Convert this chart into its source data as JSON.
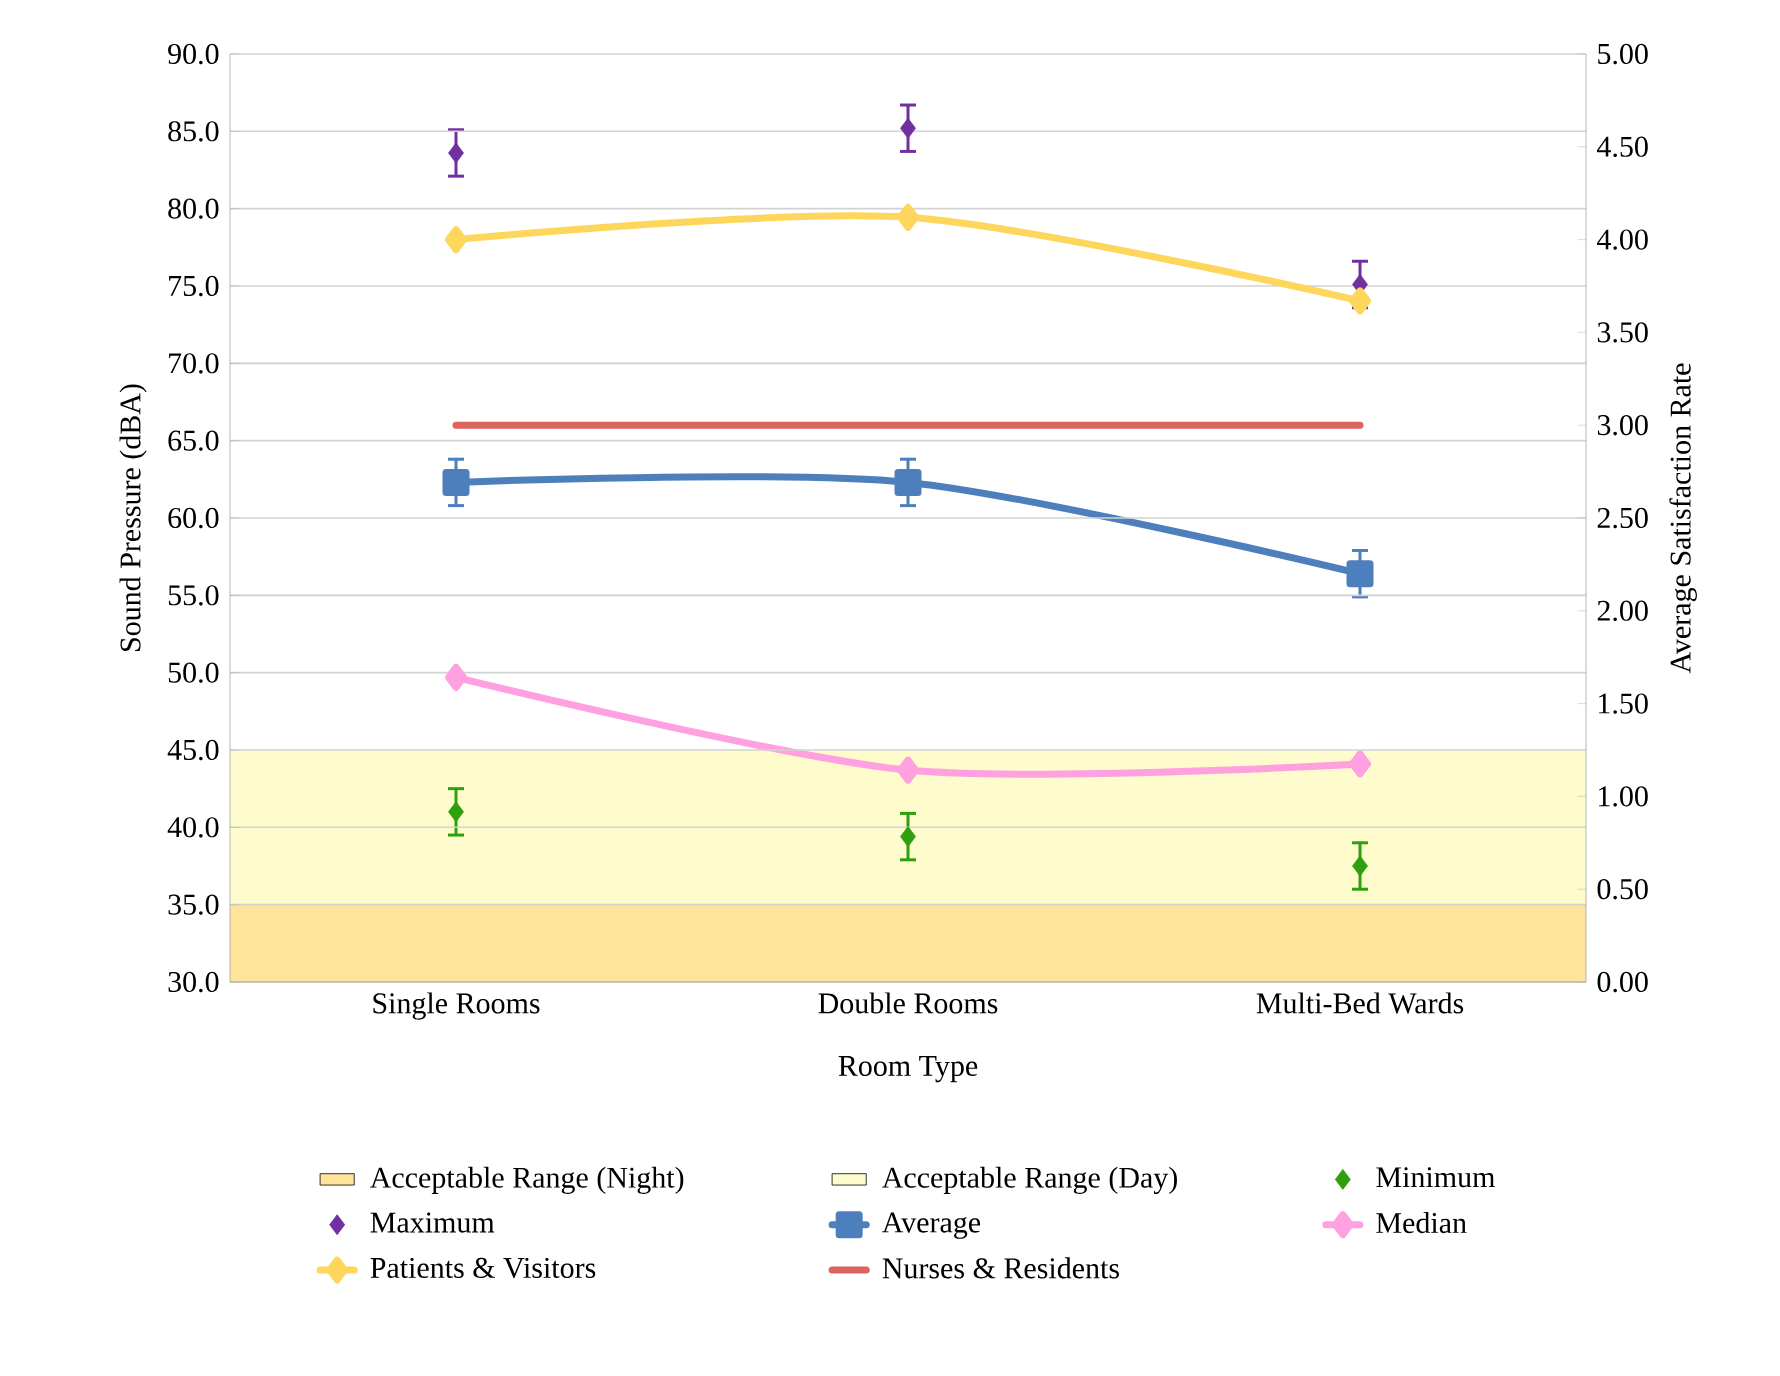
{
  "chart_data": {
    "type": "line",
    "xlabel": "Room Type",
    "ylabel": "Sound Pressure (dBA)",
    "y2label": "Average Satisfaction Rate",
    "categories": [
      "Single Rooms",
      "Double Rooms",
      "Multi-Bed Wards"
    ],
    "ylim": [
      30,
      90
    ],
    "yticks": [
      {
        "value": 30,
        "label": "30.0"
      },
      {
        "value": 35,
        "label": "35.0"
      },
      {
        "value": 40,
        "label": "40.0"
      },
      {
        "value": 45,
        "label": "45.0"
      },
      {
        "value": 50,
        "label": "50.0"
      },
      {
        "value": 55,
        "label": "55.0"
      },
      {
        "value": 60,
        "label": "60.0"
      },
      {
        "value": 65,
        "label": "65.0"
      },
      {
        "value": 70,
        "label": "70.0"
      },
      {
        "value": 75,
        "label": "75.0"
      },
      {
        "value": 80,
        "label": "80.0"
      },
      {
        "value": 85,
        "label": "85.0"
      },
      {
        "value": 90,
        "label": "90.0"
      }
    ],
    "y2lim": [
      0,
      5
    ],
    "y2ticks": [
      {
        "value": 0,
        "label": "0.00"
      },
      {
        "value": 0.5,
        "label": "0.50"
      },
      {
        "value": 1,
        "label": "1.00"
      },
      {
        "value": 1.5,
        "label": "1.50"
      },
      {
        "value": 2,
        "label": "2.00"
      },
      {
        "value": 2.5,
        "label": "2.50"
      },
      {
        "value": 3,
        "label": "3.00"
      },
      {
        "value": 3.5,
        "label": "3.50"
      },
      {
        "value": 4,
        "label": "4.00"
      },
      {
        "value": 4.5,
        "label": "4.50"
      },
      {
        "value": 5,
        "label": "5.00"
      }
    ],
    "grid": "y",
    "legend": "bottom",
    "bands": [
      {
        "axis": "y",
        "from": 30,
        "to": 35,
        "label": "Acceptable Range (Night)",
        "color": "#fee49a"
      },
      {
        "axis": "y",
        "from": 35,
        "to": 45,
        "label": "Acceptable Range (Day)",
        "color": "#fefccc"
      }
    ],
    "series": [
      {
        "name": "Minimum",
        "type": "scatter",
        "marker": "diamond",
        "color": "#2ea00e",
        "values": [
          41.0,
          39.4,
          37.5
        ],
        "errors": [
          1.5,
          1.5,
          1.5
        ]
      },
      {
        "name": "Maximum",
        "type": "scatter",
        "marker": "diamond",
        "color": "#7030a0",
        "values": [
          83.6,
          85.2,
          75.1
        ],
        "errors": [
          1.5,
          1.5,
          1.5
        ]
      },
      {
        "name": "Average",
        "marker": "square",
        "color": "#4e7fbd",
        "values": [
          62.3,
          62.3,
          56.4
        ],
        "errors": [
          1.5,
          1.5,
          1.5
        ]
      },
      {
        "name": "Median",
        "marker": "diamond",
        "color": "#ffa0e0",
        "values": [
          49.7,
          43.7,
          44.1
        ]
      },
      {
        "name": "Patients & Visitors",
        "marker": "diamond",
        "color": "#ffd65c",
        "axis": "y2",
        "values": [
          4.0,
          4.12,
          3.67
        ]
      },
      {
        "name": "Nurses & Residents",
        "marker": "none",
        "color": "#dc6460",
        "axis": "y2",
        "values": [
          3.0,
          3.0,
          3.0
        ]
      }
    ]
  }
}
